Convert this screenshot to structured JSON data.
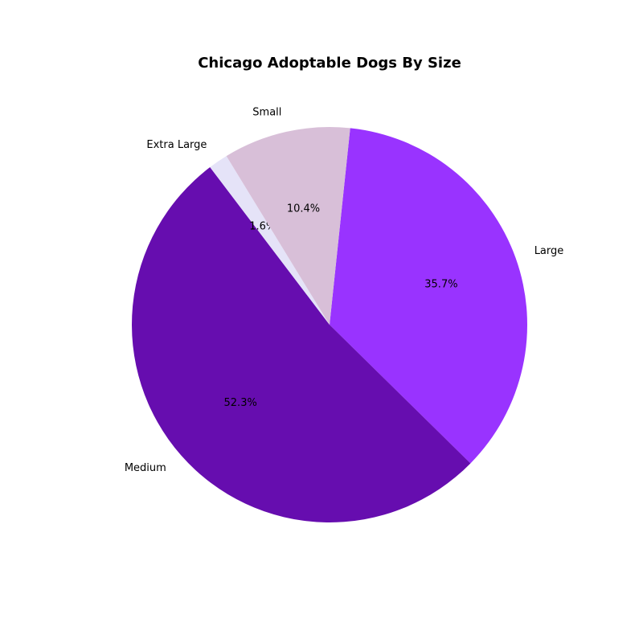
{
  "chart_data": {
    "type": "pie",
    "title": "Chicago Adoptable Dogs By Size",
    "slices": [
      {
        "label": "Large",
        "percent": 35.7,
        "percent_label": "35.7%",
        "color": "#9933ff"
      },
      {
        "label": "Medium",
        "percent": 52.3,
        "percent_label": "52.3%",
        "color": "#660daf"
      },
      {
        "label": "Extra Large",
        "percent": 1.6,
        "percent_label": "1.6%",
        "color": "#e5e3f8"
      },
      {
        "label": "Small",
        "percent": 10.4,
        "percent_label": "10.4%",
        "color": "#d8bfd8"
      }
    ]
  }
}
